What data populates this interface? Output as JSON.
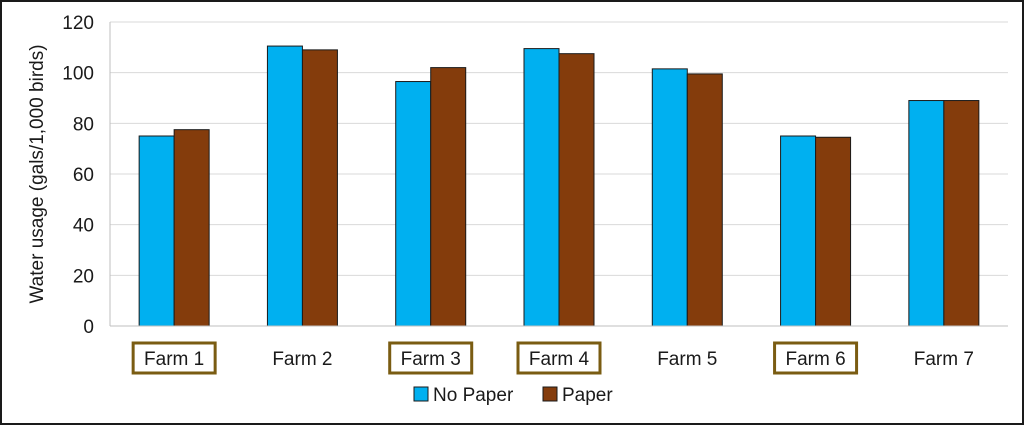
{
  "chart_data": {
    "type": "bar",
    "title": "",
    "xlabel": "",
    "ylabel": "Water usage (gals/1,000 birds)",
    "ylim": [
      0,
      120
    ],
    "yticks": [
      0,
      20,
      40,
      60,
      80,
      100,
      120
    ],
    "grid": true,
    "legend_position": "bottom",
    "categories": [
      "Farm 1",
      "Farm 2",
      "Farm 3",
      "Farm 4",
      "Farm 5",
      "Farm 6",
      "Farm 7"
    ],
    "highlighted_categories": [
      "Farm 1",
      "Farm 3",
      "Farm 4",
      "Farm 6"
    ],
    "highlight_color": "#7a5c12",
    "series": [
      {
        "name": "No Paper",
        "color": "#00b0f0",
        "values": [
          75,
          110.5,
          96.5,
          109.5,
          101.5,
          75,
          89
        ]
      },
      {
        "name": "Paper",
        "color": "#843c0c",
        "values": [
          77.5,
          109,
          102,
          107.5,
          99.5,
          74.5,
          89
        ]
      }
    ]
  }
}
